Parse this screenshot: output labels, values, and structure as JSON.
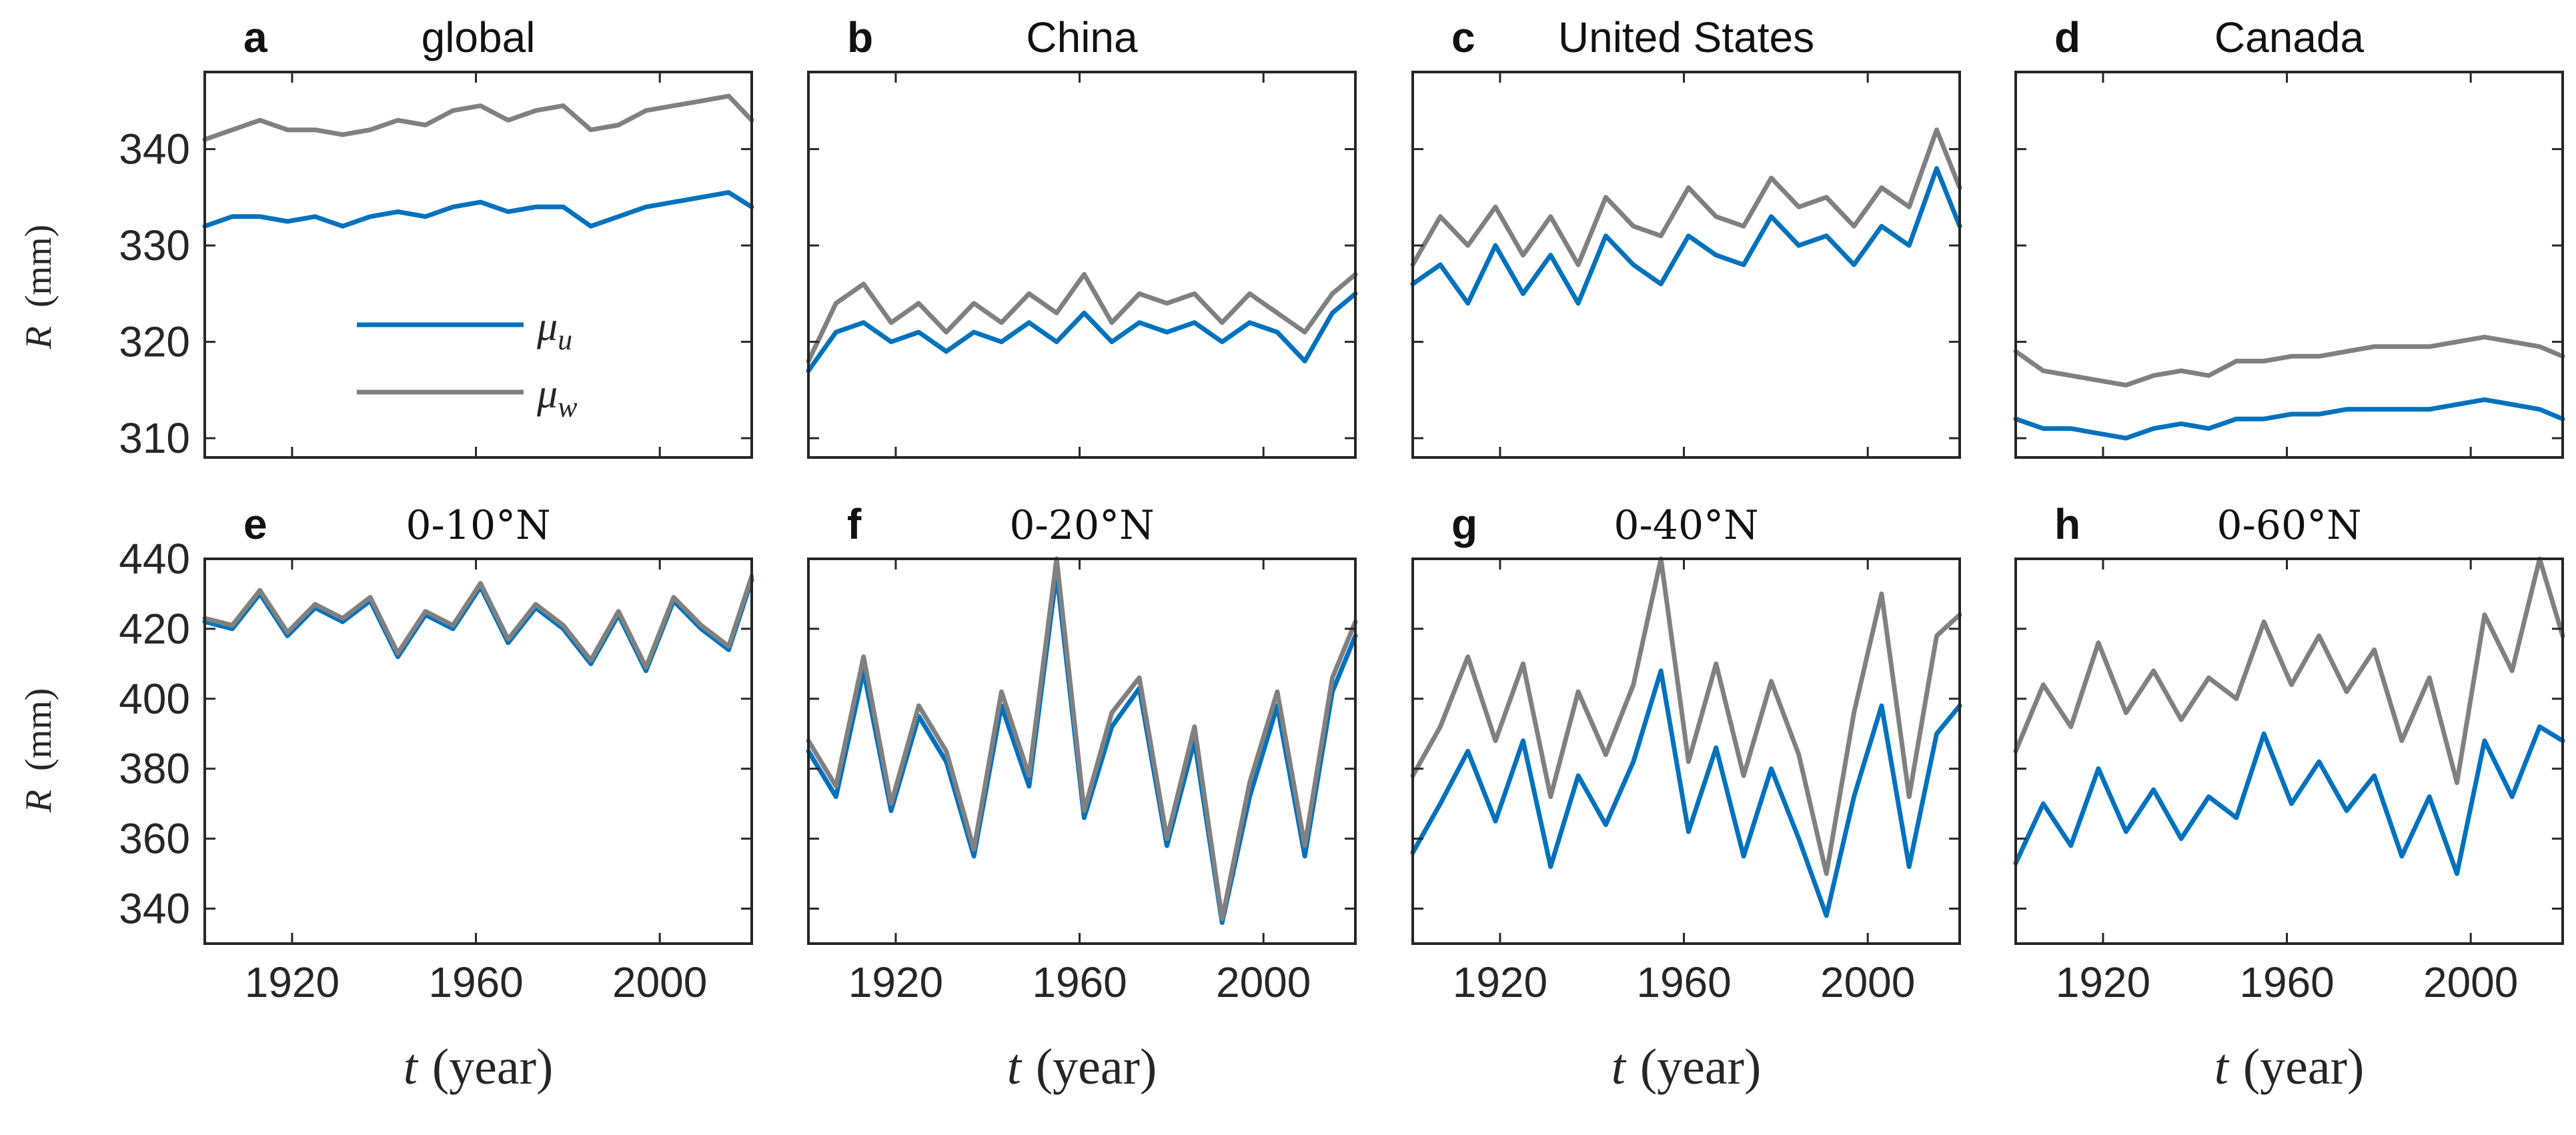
{
  "figure": {
    "top_ylim": [
      308,
      348
    ],
    "top_yticks": [
      310,
      320,
      330,
      340
    ],
    "bottom_ylim": [
      330,
      440
    ],
    "bottom_yticks": [
      340,
      360,
      380,
      400,
      420,
      440
    ],
    "xlim": [
      1901,
      2020
    ],
    "xticks": [
      1920,
      1960,
      2000
    ],
    "xlabel_var": "t",
    "xlabel_unit": "(year)",
    "ylabel_var": "R",
    "ylabel_unit": "(mm)",
    "legend": {
      "u_symbol": "μ",
      "u_sub": "u",
      "w_symbol": "μ",
      "w_sub": "w"
    },
    "colors": {
      "mu_u": "#0072BD",
      "mu_w": "#808080"
    }
  },
  "chart_data": [
    {
      "type": "line",
      "panel": "a",
      "title": "global",
      "title_font": "sans",
      "xlabel": "",
      "ylabel": "R (mm)",
      "xlim": [
        1901,
        2020
      ],
      "ylim": [
        308,
        348
      ],
      "series": [
        {
          "name": "μu",
          "x": [
            1901,
            1907,
            1913,
            1919,
            1925,
            1931,
            1937,
            1943,
            1949,
            1955,
            1961,
            1967,
            1973,
            1979,
            1985,
            1991,
            1997,
            2003,
            2009,
            2015,
            2020
          ],
          "values": [
            332,
            333,
            333,
            332.5,
            333,
            332,
            333,
            333.5,
            333,
            334,
            334.5,
            333.5,
            334,
            334,
            332,
            333,
            334,
            334.5,
            335,
            335.5,
            334
          ]
        },
        {
          "name": "μw",
          "x": [
            1901,
            1907,
            1913,
            1919,
            1925,
            1931,
            1937,
            1943,
            1949,
            1955,
            1961,
            1967,
            1973,
            1979,
            1985,
            1991,
            1997,
            2003,
            2009,
            2015,
            2020
          ],
          "values": [
            341,
            342,
            343,
            342,
            342,
            341.5,
            342,
            343,
            342.5,
            344,
            344.5,
            343,
            344,
            344.5,
            342,
            342.5,
            344,
            344.5,
            345,
            345.5,
            343
          ]
        }
      ]
    },
    {
      "type": "line",
      "panel": "b",
      "title": "China",
      "title_font": "sans",
      "xlabel": "",
      "ylabel": "",
      "xlim": [
        1901,
        2020
      ],
      "ylim": [
        308,
        348
      ],
      "series": [
        {
          "name": "μu",
          "x": [
            1901,
            1907,
            1913,
            1919,
            1925,
            1931,
            1937,
            1943,
            1949,
            1955,
            1961,
            1967,
            1973,
            1979,
            1985,
            1991,
            1997,
            2003,
            2009,
            2015,
            2020
          ],
          "values": [
            317,
            321,
            322,
            320,
            321,
            319,
            321,
            320,
            322,
            320,
            323,
            320,
            322,
            321,
            322,
            320,
            322,
            321,
            318,
            323,
            325
          ]
        },
        {
          "name": "μw",
          "x": [
            1901,
            1907,
            1913,
            1919,
            1925,
            1931,
            1937,
            1943,
            1949,
            1955,
            1961,
            1967,
            1973,
            1979,
            1985,
            1991,
            1997,
            2003,
            2009,
            2015,
            2020
          ],
          "values": [
            318,
            324,
            326,
            322,
            324,
            321,
            324,
            322,
            325,
            323,
            327,
            322,
            325,
            324,
            325,
            322,
            325,
            323,
            321,
            325,
            327
          ]
        }
      ]
    },
    {
      "type": "line",
      "panel": "c",
      "title": "United States",
      "title_font": "sans",
      "xlabel": "",
      "ylabel": "",
      "xlim": [
        1901,
        2020
      ],
      "ylim": [
        308,
        348
      ],
      "series": [
        {
          "name": "μu",
          "x": [
            1901,
            1907,
            1913,
            1919,
            1925,
            1931,
            1937,
            1943,
            1949,
            1955,
            1961,
            1967,
            1973,
            1979,
            1985,
            1991,
            1997,
            2003,
            2009,
            2015,
            2020
          ],
          "values": [
            326,
            328,
            324,
            330,
            325,
            329,
            324,
            331,
            328,
            326,
            331,
            329,
            328,
            333,
            330,
            331,
            328,
            332,
            330,
            338,
            332
          ]
        },
        {
          "name": "μw",
          "x": [
            1901,
            1907,
            1913,
            1919,
            1925,
            1931,
            1937,
            1943,
            1949,
            1955,
            1961,
            1967,
            1973,
            1979,
            1985,
            1991,
            1997,
            2003,
            2009,
            2015,
            2020
          ],
          "values": [
            328,
            333,
            330,
            334,
            329,
            333,
            328,
            335,
            332,
            331,
            336,
            333,
            332,
            337,
            334,
            335,
            332,
            336,
            334,
            342,
            336
          ]
        }
      ]
    },
    {
      "type": "line",
      "panel": "d",
      "title": "Canada",
      "title_font": "sans",
      "xlabel": "",
      "ylabel": "",
      "xlim": [
        1901,
        2020
      ],
      "ylim": [
        308,
        348
      ],
      "series": [
        {
          "name": "μu",
          "x": [
            1901,
            1907,
            1913,
            1919,
            1925,
            1931,
            1937,
            1943,
            1949,
            1955,
            1961,
            1967,
            1973,
            1979,
            1985,
            1991,
            1997,
            2003,
            2009,
            2015,
            2020
          ],
          "values": [
            312,
            311,
            311,
            310.5,
            310,
            311,
            311.5,
            311,
            312,
            312,
            312.5,
            312.5,
            313,
            313,
            313,
            313,
            313.5,
            314,
            313.5,
            313,
            312
          ]
        },
        {
          "name": "μw",
          "x": [
            1901,
            1907,
            1913,
            1919,
            1925,
            1931,
            1937,
            1943,
            1949,
            1955,
            1961,
            1967,
            1973,
            1979,
            1985,
            1991,
            1997,
            2003,
            2009,
            2015,
            2020
          ],
          "values": [
            319,
            317,
            316.5,
            316,
            315.5,
            316.5,
            317,
            316.5,
            318,
            318,
            318.5,
            318.5,
            319,
            319.5,
            319.5,
            319.5,
            320,
            320.5,
            320,
            319.5,
            318.5
          ]
        }
      ]
    },
    {
      "type": "line",
      "panel": "e",
      "title": "0-10°N",
      "title_font": "serif",
      "xlabel": "t (year)",
      "ylabel": "R (mm)",
      "xlim": [
        1901,
        2020
      ],
      "ylim": [
        330,
        440
      ],
      "series": [
        {
          "name": "μu",
          "x": [
            1901,
            1907,
            1913,
            1919,
            1925,
            1931,
            1937,
            1943,
            1949,
            1955,
            1961,
            1967,
            1973,
            1979,
            1985,
            1991,
            1997,
            2003,
            2009,
            2015,
            2020
          ],
          "values": [
            422,
            420,
            430,
            418,
            426,
            422,
            428,
            412,
            424,
            420,
            432,
            416,
            426,
            420,
            410,
            424,
            408,
            428,
            420,
            414,
            434
          ]
        },
        {
          "name": "μw",
          "x": [
            1901,
            1907,
            1913,
            1919,
            1925,
            1931,
            1937,
            1943,
            1949,
            1955,
            1961,
            1967,
            1973,
            1979,
            1985,
            1991,
            1997,
            2003,
            2009,
            2015,
            2020
          ],
          "values": [
            423,
            421,
            431,
            419,
            427,
            423,
            429,
            413,
            425,
            421,
            433,
            417,
            427,
            421,
            411,
            425,
            409,
            429,
            421,
            415,
            435
          ]
        }
      ]
    },
    {
      "type": "line",
      "panel": "f",
      "title": "0-20°N",
      "title_font": "serif",
      "xlabel": "t (year)",
      "ylabel": "",
      "xlim": [
        1901,
        2020
      ],
      "ylim": [
        330,
        440
      ],
      "series": [
        {
          "name": "μu",
          "x": [
            1901,
            1907,
            1913,
            1919,
            1925,
            1931,
            1937,
            1943,
            1949,
            1955,
            1961,
            1967,
            1973,
            1979,
            1985,
            1991,
            1997,
            2003,
            2009,
            2015,
            2020
          ],
          "values": [
            385,
            372,
            408,
            368,
            395,
            382,
            355,
            398,
            375,
            436,
            366,
            392,
            403,
            358,
            388,
            336,
            372,
            398,
            355,
            402,
            418
          ]
        },
        {
          "name": "μw",
          "x": [
            1901,
            1907,
            1913,
            1919,
            1925,
            1931,
            1937,
            1943,
            1949,
            1955,
            1961,
            1967,
            1973,
            1979,
            1985,
            1991,
            1997,
            2003,
            2009,
            2015,
            2020
          ],
          "values": [
            388,
            375,
            412,
            370,
            398,
            385,
            357,
            402,
            378,
            440,
            368,
            396,
            406,
            360,
            392,
            337,
            376,
            402,
            358,
            406,
            422
          ]
        }
      ]
    },
    {
      "type": "line",
      "panel": "g",
      "title": "0-40°N",
      "title_font": "serif",
      "xlabel": "t (year)",
      "ylabel": "",
      "xlim": [
        1901,
        2020
      ],
      "ylim": [
        330,
        440
      ],
      "series": [
        {
          "name": "μu",
          "x": [
            1901,
            1907,
            1913,
            1919,
            1925,
            1931,
            1937,
            1943,
            1949,
            1955,
            1961,
            1967,
            1973,
            1979,
            1985,
            1991,
            1997,
            2003,
            2009,
            2015,
            2020
          ],
          "values": [
            356,
            370,
            385,
            365,
            388,
            352,
            378,
            364,
            382,
            408,
            362,
            386,
            355,
            380,
            360,
            338,
            372,
            398,
            352,
            390,
            398
          ]
        },
        {
          "name": "μw",
          "x": [
            1901,
            1907,
            1913,
            1919,
            1925,
            1931,
            1937,
            1943,
            1949,
            1955,
            1961,
            1967,
            1973,
            1979,
            1985,
            1991,
            1997,
            2003,
            2009,
            2015,
            2020
          ],
          "values": [
            378,
            392,
            412,
            388,
            410,
            372,
            402,
            384,
            404,
            440,
            382,
            410,
            378,
            405,
            384,
            350,
            396,
            430,
            372,
            418,
            424
          ]
        }
      ]
    },
    {
      "type": "line",
      "panel": "h",
      "title": "0-60°N",
      "title_font": "serif",
      "xlabel": "t (year)",
      "ylabel": "",
      "xlim": [
        1901,
        2020
      ],
      "ylim": [
        330,
        440
      ],
      "series": [
        {
          "name": "μu",
          "x": [
            1901,
            1907,
            1913,
            1919,
            1925,
            1931,
            1937,
            1943,
            1949,
            1955,
            1961,
            1967,
            1973,
            1979,
            1985,
            1991,
            1997,
            2003,
            2009,
            2015,
            2020
          ],
          "values": [
            353,
            370,
            358,
            380,
            362,
            374,
            360,
            372,
            366,
            390,
            370,
            382,
            368,
            378,
            355,
            372,
            350,
            388,
            372,
            392,
            388
          ]
        },
        {
          "name": "μw",
          "x": [
            1901,
            1907,
            1913,
            1919,
            1925,
            1931,
            1937,
            1943,
            1949,
            1955,
            1961,
            1967,
            1973,
            1979,
            1985,
            1991,
            1997,
            2003,
            2009,
            2015,
            2020
          ],
          "values": [
            385,
            404,
            392,
            416,
            396,
            408,
            394,
            406,
            400,
            422,
            404,
            418,
            402,
            414,
            388,
            406,
            376,
            424,
            408,
            440,
            418
          ]
        }
      ]
    }
  ]
}
